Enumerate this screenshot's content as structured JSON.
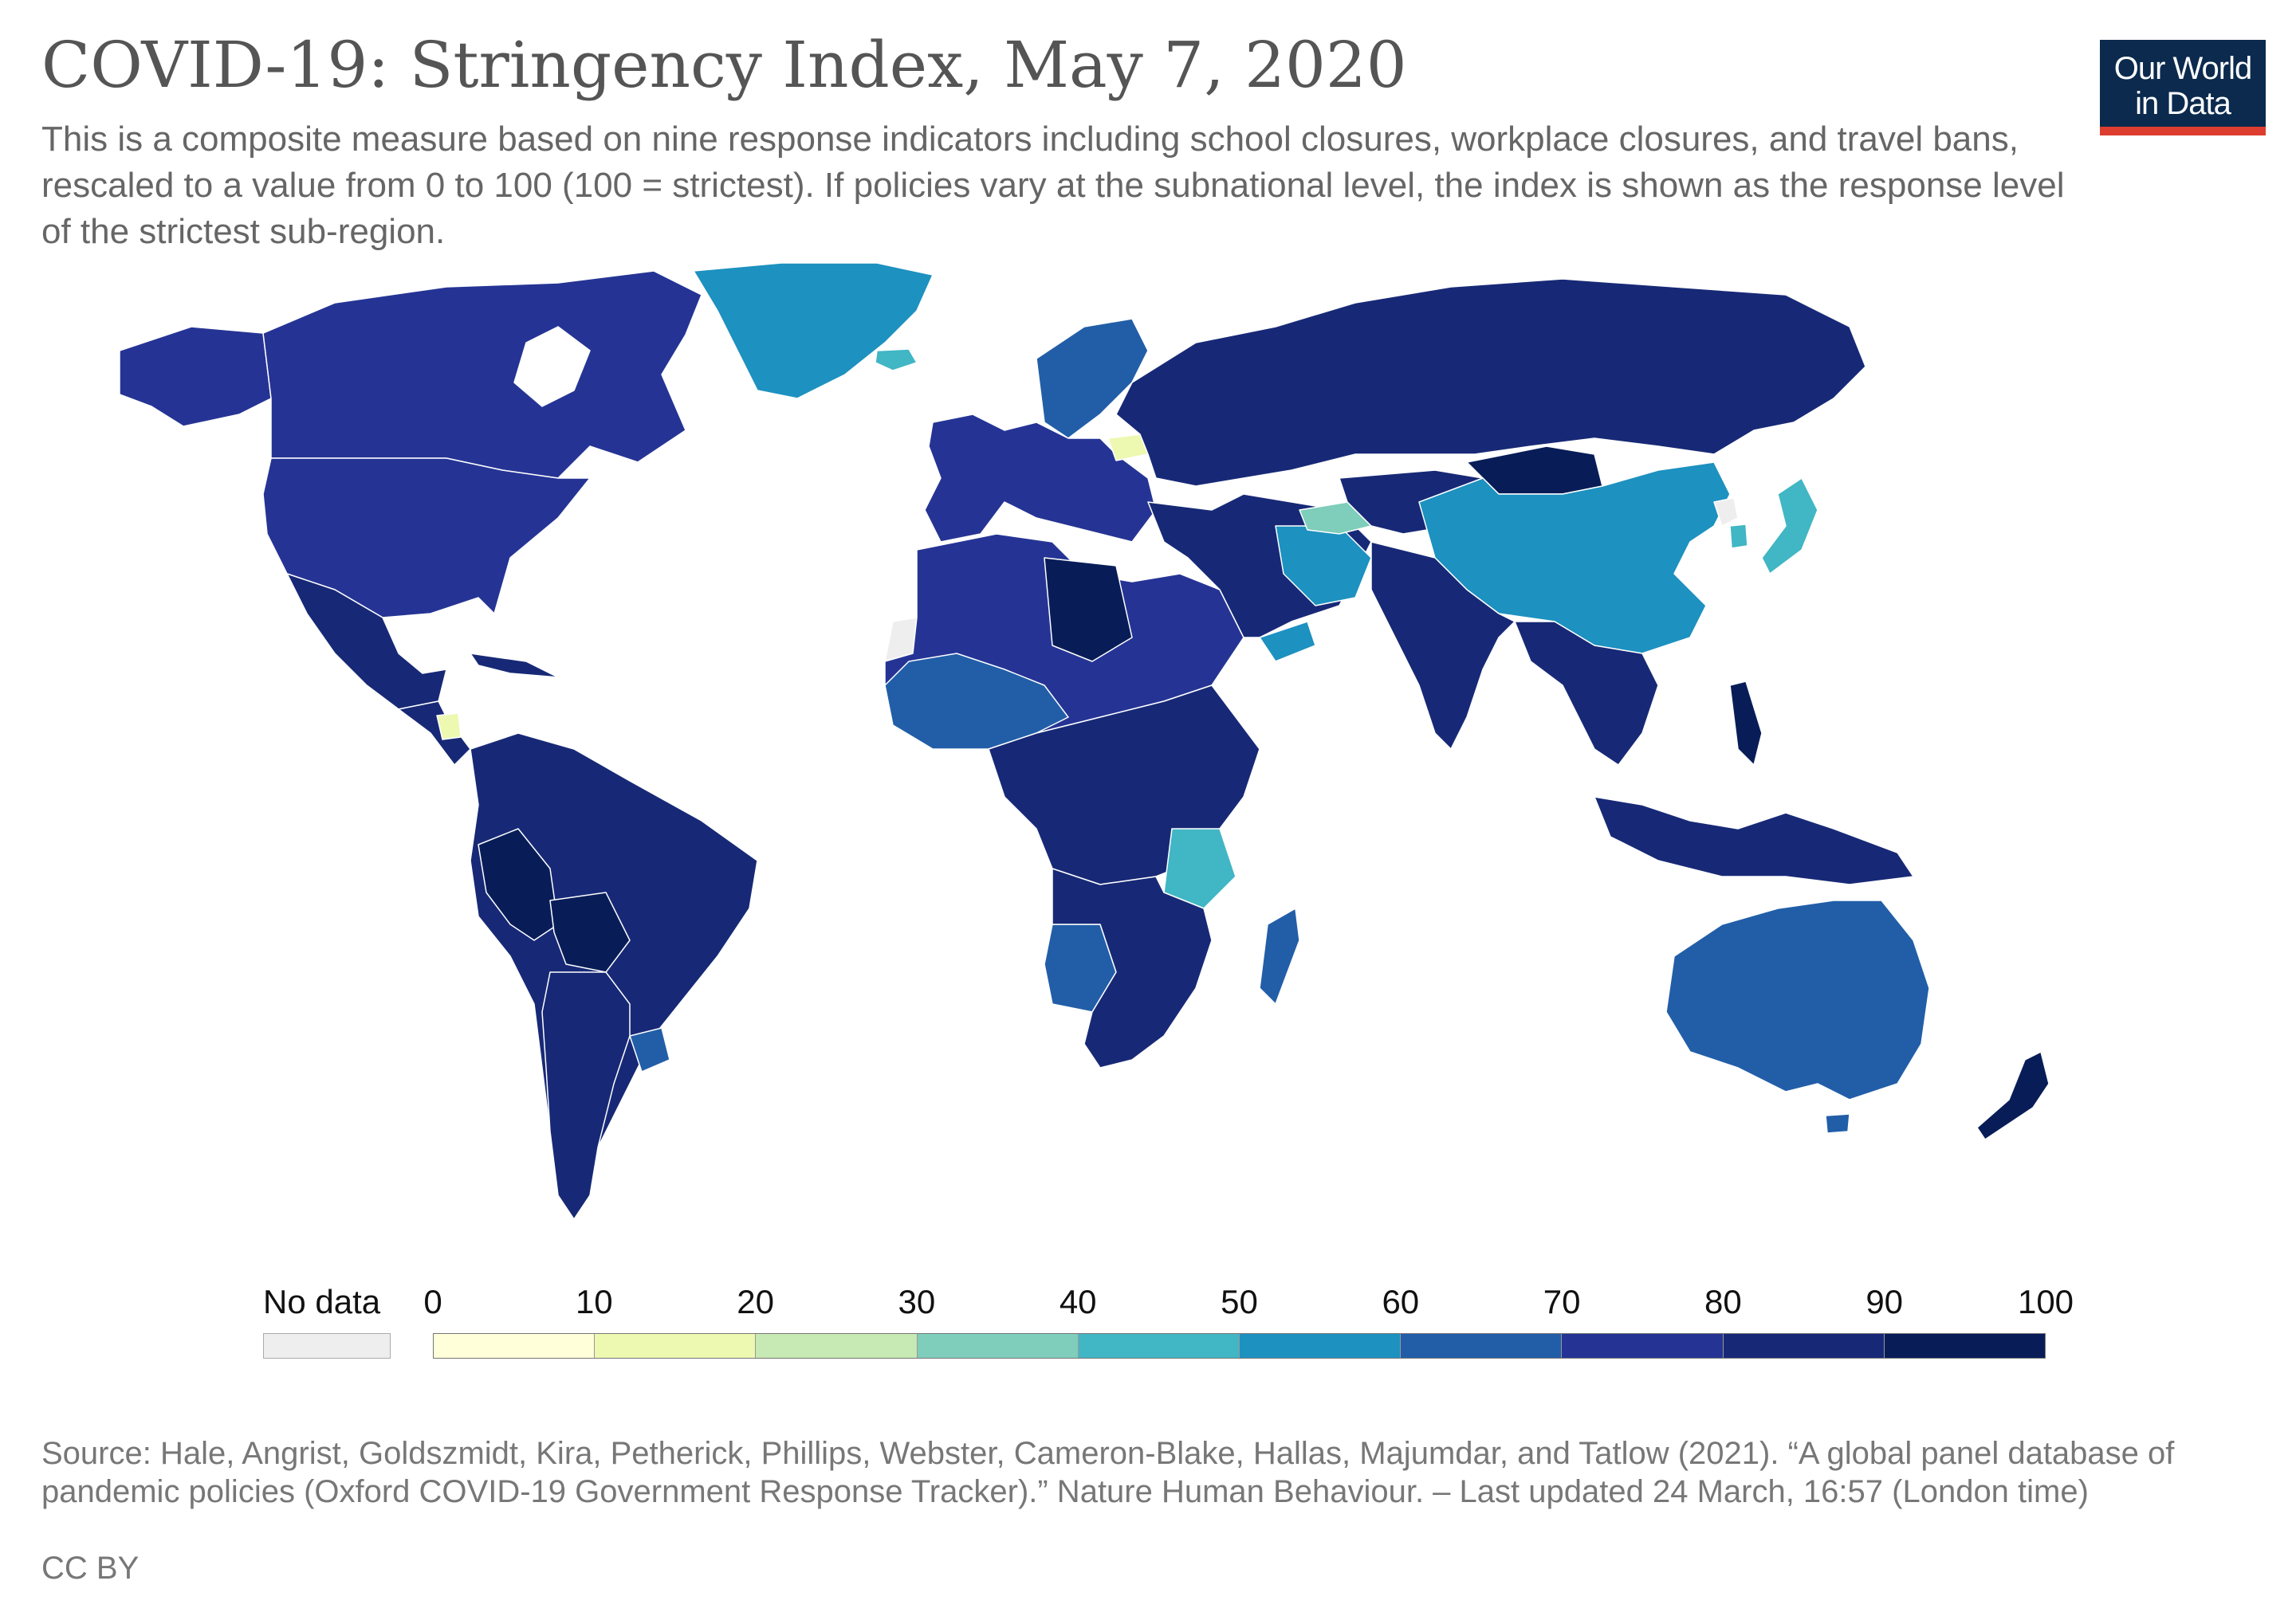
{
  "title": "COVID-19: Stringency Index, May 7, 2020",
  "subtitle": "This is a composite measure based on nine response indicators including school closures, workplace closures, and travel bans, rescaled to a value from 0 to 100 (100 = strictest). If policies vary at the subnational level, the index is shown as the response level of the strictest sub-region.",
  "logo": {
    "line1": "Our World",
    "line2": "in Data"
  },
  "legend": {
    "no_data_label": "No data",
    "no_data_color": "#eeeeee",
    "ticks": [
      "0",
      "10",
      "20",
      "30",
      "40",
      "50",
      "60",
      "70",
      "80",
      "90",
      "100"
    ],
    "colors": [
      "#ffffd9",
      "#edf8b1",
      "#c7e9b4",
      "#7fcdbb",
      "#41b6c4",
      "#1d91c0",
      "#225ea8",
      "#253494",
      "#172976",
      "#081d58"
    ]
  },
  "source": "Source: Hale, Angrist, Goldszmidt, Kira, Petherick, Phillips, Webster, Cameron-Blake, Hallas, Majumdar, and Tatlow (2021). “A global panel database of pandemic policies (Oxford COVID-19 Government Response Tracker).” Nature Human Behaviour. – Last updated 24 March, 16:57 (London time)",
  "license": "CC BY",
  "map_regions": [
    {
      "name": "canada",
      "color": "#253494"
    },
    {
      "name": "alaska",
      "color": "#253494"
    },
    {
      "name": "greenland",
      "color": "#1d91c0"
    },
    {
      "name": "iceland",
      "color": "#41b6c4"
    },
    {
      "name": "united-states",
      "color": "#253494"
    },
    {
      "name": "mexico",
      "color": "#172976"
    },
    {
      "name": "central-america",
      "color": "#172976"
    },
    {
      "name": "nicaragua",
      "color": "#edf8b1"
    },
    {
      "name": "cuba",
      "color": "#172976"
    },
    {
      "name": "south-america",
      "color": "#172976"
    },
    {
      "name": "bolivia",
      "color": "#081d58"
    },
    {
      "name": "peru",
      "color": "#081d58"
    },
    {
      "name": "uruguay",
      "color": "#225ea8"
    },
    {
      "name": "argentina",
      "color": "#172976"
    },
    {
      "name": "north-africa",
      "color": "#253494"
    },
    {
      "name": "libya",
      "color": "#081d58"
    },
    {
      "name": "west-africa",
      "color": "#225ea8"
    },
    {
      "name": "central-africa",
      "color": "#172976"
    },
    {
      "name": "tanzania",
      "color": "#41b6c4"
    },
    {
      "name": "southern-africa",
      "color": "#172976"
    },
    {
      "name": "angola",
      "color": "#225ea8"
    },
    {
      "name": "madagascar",
      "color": "#225ea8"
    },
    {
      "name": "western-europe",
      "color": "#253494"
    },
    {
      "name": "scandinavia",
      "color": "#225ea8"
    },
    {
      "name": "belarus",
      "color": "#edf8b1"
    },
    {
      "name": "russia",
      "color": "#172976"
    },
    {
      "name": "middle-east",
      "color": "#172976"
    },
    {
      "name": "iran",
      "color": "#1d91c0"
    },
    {
      "name": "turkmenistan",
      "color": "#7fcdbb"
    },
    {
      "name": "yemen",
      "color": "#1d91c0"
    },
    {
      "name": "mongolia",
      "color": "#081d58"
    },
    {
      "name": "china",
      "color": "#1d91c0"
    },
    {
      "name": "south-korea",
      "color": "#41b6c4"
    },
    {
      "name": "japan",
      "color": "#41b6c4"
    },
    {
      "name": "india",
      "color": "#172976"
    },
    {
      "name": "southeast-asia",
      "color": "#172976"
    },
    {
      "name": "philippines",
      "color": "#081d58"
    },
    {
      "name": "indonesia",
      "color": "#172976"
    },
    {
      "name": "australia",
      "color": "#225ea8"
    },
    {
      "name": "new-zealand",
      "color": "#081d58"
    },
    {
      "name": "western-sahara",
      "color": "#eeeeee"
    },
    {
      "name": "north-korea",
      "color": "#eeeeee"
    }
  ]
}
